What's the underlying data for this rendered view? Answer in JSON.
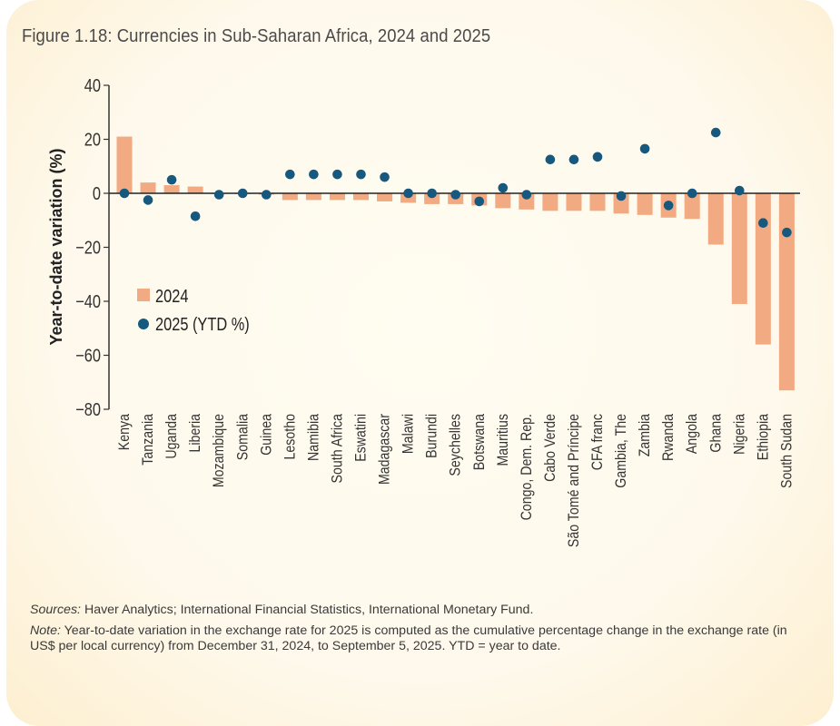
{
  "figure": {
    "title": "Figure 1.18: Currencies in Sub-Saharan Africa, 2024 and 2025",
    "sources_label": "Sources:",
    "sources_text": " Haver Analytics; International Financial Statistics, International Monetary Fund.",
    "note_label": "Note:",
    "note_text": " Year-to-date variation in the exchange rate for 2025 is computed as the cumulative percentage change in the exchange rate (in US$ per local currency) from December 31, 2024, to September 5, 2025. YTD = year to date."
  },
  "colors": {
    "bar_2024": "#f2aa82",
    "dot_2025": "#17587e",
    "axis": "#333333"
  },
  "chart_data": {
    "type": "bar",
    "title": "Figure 1.18: Currencies in Sub-Saharan Africa, 2024 and 2025",
    "xlabel": "",
    "ylabel": "Year-to-date variation (%)",
    "ylim": [
      -80,
      40
    ],
    "yticks": [
      40,
      20,
      0,
      -20,
      -40,
      -60,
      -80
    ],
    "ytick_labels": [
      "40",
      "20",
      "0",
      "−20",
      "−40",
      "−60",
      "−80"
    ],
    "grid": false,
    "legend_position": "left-middle",
    "categories": [
      "Kenya",
      "Tanzania",
      "Uganda",
      "Liberia",
      "Mozambique",
      "Somalia",
      "Guinea",
      "Lesotho",
      "Namibia",
      "South Africa",
      "Eswatini",
      "Madagascar",
      "Malawi",
      "Burundi",
      "Seychelles",
      "Botswana",
      "Mauritius",
      "Congo, Dem. Rep.",
      "Cabo Verde",
      "São Tomé and Príncipe",
      "CFA franc",
      "Gambia, The",
      "Zambia",
      "Rwanda",
      "Angola",
      "Ghana",
      "Nigeria",
      "Ethiopia",
      "South Sudan"
    ],
    "series": [
      {
        "name": "2024",
        "kind": "bar",
        "values": [
          21,
          4,
          3,
          2.5,
          0,
          0,
          -0.5,
          -2.5,
          -2.5,
          -2.5,
          -2.5,
          -3,
          -3.5,
          -4,
          -4,
          -4.5,
          -5.5,
          -6,
          -6.5,
          -6.5,
          -6.5,
          -7.5,
          -8,
          -9,
          -9.5,
          -19,
          -41,
          -56,
          -73
        ]
      },
      {
        "name": "2025 (YTD %)",
        "kind": "scatter",
        "values": [
          0,
          -2.5,
          5,
          -8.5,
          -0.5,
          0,
          -0.5,
          7,
          7,
          7,
          7,
          6,
          0,
          0,
          -0.5,
          -3,
          2,
          -0.5,
          12.5,
          12.5,
          13.5,
          -1,
          16.5,
          -4.5,
          0,
          22.5,
          1,
          -11,
          -14.5
        ]
      }
    ]
  }
}
